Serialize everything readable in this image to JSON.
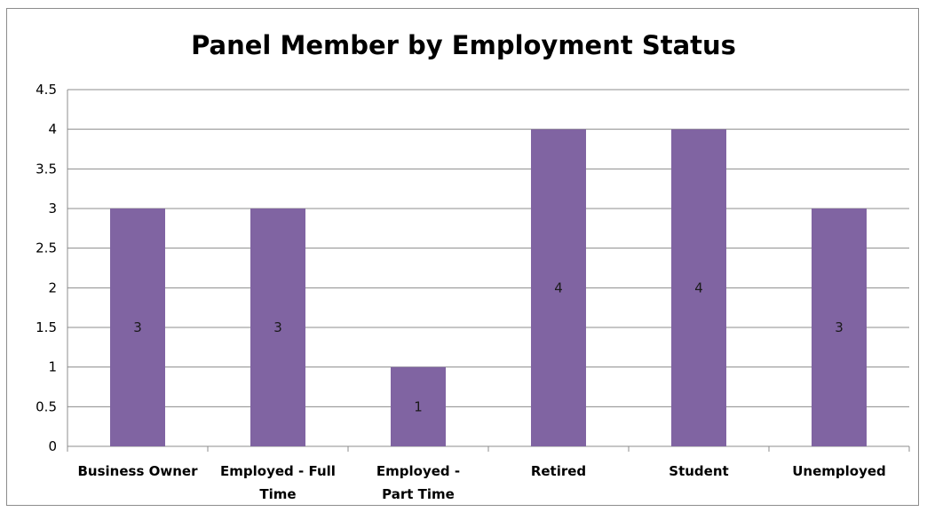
{
  "colors": {
    "bar": "#8064a2",
    "grid": "#8c8c8c",
    "axis": "#8c8c8c"
  },
  "chart_data": {
    "type": "bar",
    "title": "Panel Member by Employment Status",
    "xlabel": "",
    "ylabel": "",
    "categories": [
      [
        "Business Owner"
      ],
      [
        "Employed - Full",
        "Time"
      ],
      [
        "Employed -",
        "Part Time"
      ],
      [
        "Retired"
      ],
      [
        "Student"
      ],
      [
        "Unemployed"
      ]
    ],
    "values": [
      3,
      3,
      1,
      4,
      4,
      3
    ],
    "data_labels": [
      "3",
      "3",
      "1",
      "4",
      "4",
      "3"
    ],
    "ylim": [
      0,
      4.5
    ],
    "yticks": [
      "0",
      "0.5",
      "1",
      "1.5",
      "2",
      "2.5",
      "3",
      "3.5",
      "4",
      "4.5"
    ],
    "grid": true,
    "legend": "none"
  }
}
